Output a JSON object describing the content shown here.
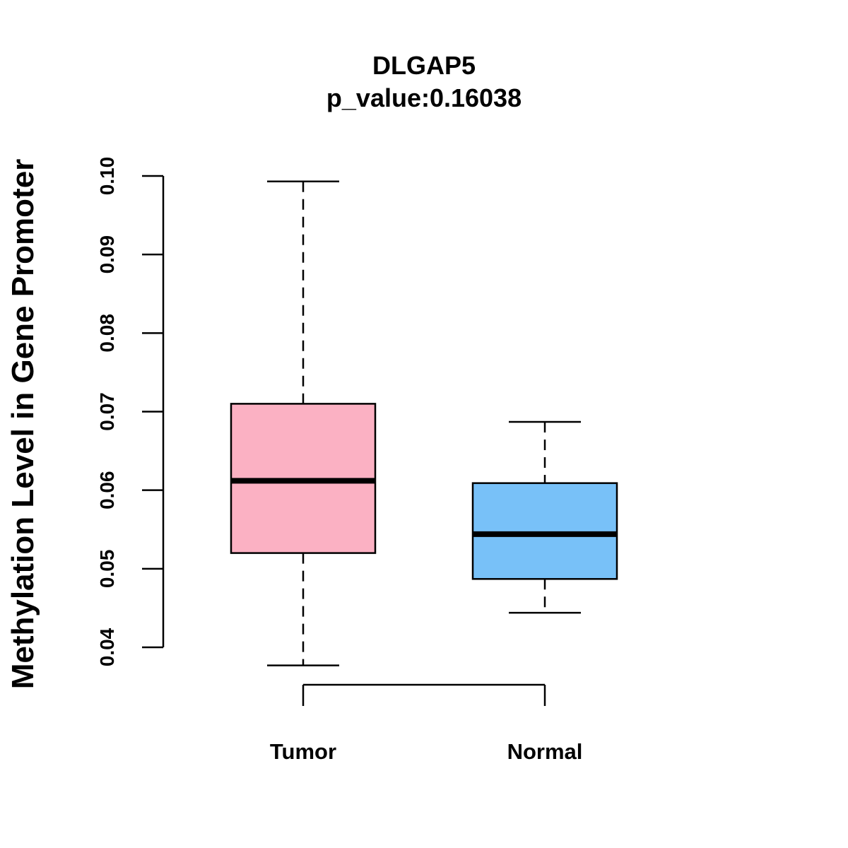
{
  "chart_data": {
    "type": "boxplot",
    "title": "DLGAP5",
    "subtitle": "p_value:0.16038",
    "xlabel": "",
    "ylabel": "Methylation Level in Gene Promoter",
    "ylim": [
      0.04,
      0.1
    ],
    "yticks": [
      0.04,
      0.05,
      0.06,
      0.07,
      0.08,
      0.09,
      0.1
    ],
    "ytick_labels": [
      "0.04",
      "0.05",
      "0.06",
      "0.07",
      "0.08",
      "0.09",
      "0.10"
    ],
    "categories": [
      "Tumor",
      "Normal"
    ],
    "series": [
      {
        "name": "Tumor",
        "color": "#FBB1C3",
        "whisker_low": 0.0377,
        "q1": 0.052,
        "median": 0.0612,
        "q3": 0.071,
        "whisker_high": 0.0993
      },
      {
        "name": "Normal",
        "color": "#78C1F8",
        "whisker_low": 0.0444,
        "q1": 0.0487,
        "median": 0.0544,
        "q3": 0.0609,
        "whisker_high": 0.0687
      }
    ]
  }
}
